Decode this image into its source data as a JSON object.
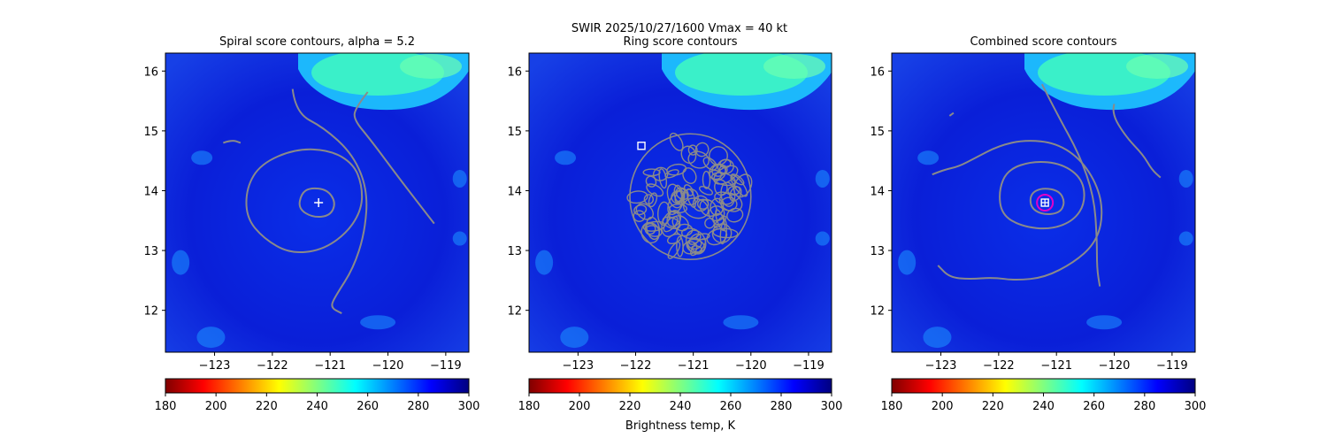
{
  "figure": {
    "suptitle_line1": "SWIR  2025/10/27/1600    Vmax = 40 kt",
    "colorbar_label": "Brightness temp, K"
  },
  "colors": {
    "background": "#0a1fd8",
    "contour": "#8a8a8a",
    "marker_white": "#ffffff",
    "marker_magenta": "#e000c8",
    "cloud_cyan": "#3cf2c6"
  },
  "colormap": {
    "name": "jet_r",
    "stops": [
      "#800000",
      "#ff0000",
      "#ff8000",
      "#ffff00",
      "#80ff80",
      "#00ffff",
      "#0080ff",
      "#0000ff",
      "#000080"
    ]
  },
  "chart_data": [
    {
      "type": "heatmap",
      "title": "Spiral score contours, alpha =  5.2",
      "xlabel": "",
      "ylabel": "",
      "xlim": [
        -123.85,
        -118.6
      ],
      "ylim": [
        11.3,
        16.3
      ],
      "xticks": [
        -123,
        -122,
        -121,
        -120,
        -119
      ],
      "xtick_labels": [
        "−123",
        "−122",
        "−121",
        "−120",
        "−119"
      ],
      "yticks": [
        12,
        13,
        14,
        15,
        16
      ],
      "ytick_labels": [
        "12",
        "13",
        "14",
        "15",
        "16"
      ],
      "colorbar": {
        "range": [
          180,
          300
        ],
        "ticks": [
          180,
          200,
          220,
          240,
          260,
          280,
          300
        ],
        "tick_labels": [
          "180",
          "200",
          "220",
          "240",
          "260",
          "280",
          "300"
        ]
      },
      "center_marker": {
        "symbol": "plus",
        "lon": -121.2,
        "lat": 13.8
      },
      "contours": [
        {
          "kind": "closed",
          "points": [
            [
              -121.35,
              14.05
            ],
            [
              -121.05,
              14.02
            ],
            [
              -120.9,
              13.8
            ],
            [
              -121.0,
              13.58
            ],
            [
              -121.3,
              13.55
            ],
            [
              -121.55,
              13.7
            ],
            [
              -121.5,
              13.95
            ]
          ]
        },
        {
          "kind": "closed",
          "points": [
            [
              -121.6,
              14.7
            ],
            [
              -121.0,
              14.68
            ],
            [
              -120.6,
              14.45
            ],
            [
              -120.45,
              14.1
            ],
            [
              -120.45,
              13.7
            ],
            [
              -120.7,
              13.3
            ],
            [
              -121.15,
              13.0
            ],
            [
              -121.7,
              12.95
            ],
            [
              -122.15,
              13.2
            ],
            [
              -122.45,
              13.55
            ],
            [
              -122.45,
              14.05
            ],
            [
              -122.2,
              14.45
            ]
          ]
        },
        {
          "kind": "open",
          "points": [
            [
              -121.65,
              15.7
            ],
            [
              -121.6,
              15.3
            ],
            [
              -121.1,
              15.05
            ],
            [
              -120.6,
              14.6
            ],
            [
              -120.35,
              14.0
            ],
            [
              -120.4,
              13.3
            ],
            [
              -120.6,
              12.7
            ],
            [
              -120.9,
              12.25
            ],
            [
              -121.0,
              12.05
            ],
            [
              -120.8,
              11.95
            ]
          ]
        },
        {
          "kind": "open",
          "points": [
            [
              -120.35,
              15.65
            ],
            [
              -120.55,
              15.4
            ],
            [
              -120.6,
              15.2
            ],
            [
              -120.3,
              14.85
            ],
            [
              -119.8,
              14.2
            ],
            [
              -119.4,
              13.7
            ],
            [
              -119.2,
              13.45
            ]
          ]
        },
        {
          "kind": "open",
          "points": [
            [
              -122.85,
              14.8
            ],
            [
              -122.7,
              14.85
            ],
            [
              -122.55,
              14.8
            ]
          ]
        }
      ]
    },
    {
      "type": "heatmap",
      "title": "Ring score contours",
      "xlabel": "Brightness temp, K",
      "ylabel": "",
      "xlim": [
        -123.85,
        -118.6
      ],
      "ylim": [
        11.3,
        16.3
      ],
      "xticks": [
        -123,
        -122,
        -121,
        -120,
        -119
      ],
      "xtick_labels": [
        "−123",
        "−122",
        "−121",
        "−120",
        "−119"
      ],
      "yticks": [
        12,
        13,
        14,
        15,
        16
      ],
      "ytick_labels": [
        "12",
        "13",
        "14",
        "15",
        "16"
      ],
      "colorbar": {
        "range": [
          180,
          300
        ],
        "ticks": [
          180,
          200,
          220,
          240,
          260,
          280,
          300
        ],
        "tick_labels": [
          "180",
          "200",
          "220",
          "240",
          "260",
          "280",
          "300"
        ]
      },
      "center_marker": {
        "symbol": "square",
        "lon": -121.9,
        "lat": 14.75
      },
      "ring_region": {
        "center_lon": -121.05,
        "center_lat": 13.9,
        "radius_deg": 1.05
      },
      "contours": []
    },
    {
      "type": "heatmap",
      "title": "Combined score contours",
      "xlabel": "",
      "ylabel": "",
      "xlim": [
        -123.85,
        -118.6
      ],
      "ylim": [
        11.3,
        16.3
      ],
      "xticks": [
        -123,
        -122,
        -121,
        -120,
        -119
      ],
      "xtick_labels": [
        "−123",
        "−122",
        "−121",
        "−120",
        "−119"
      ],
      "yticks": [
        12,
        13,
        14,
        15,
        16
      ],
      "ytick_labels": [
        "12",
        "13",
        "14",
        "15",
        "16"
      ],
      "colorbar": {
        "range": [
          180,
          300
        ],
        "ticks": [
          180,
          200,
          220,
          240,
          260,
          280,
          300
        ],
        "tick_labels": [
          "180",
          "200",
          "220",
          "240",
          "260",
          "280",
          "300"
        ]
      },
      "center_marker": {
        "symbol": "square-plus-circle",
        "lon": -121.2,
        "lat": 13.8
      },
      "contours": [
        {
          "kind": "closed",
          "points": [
            [
              -121.25,
              14.05
            ],
            [
              -120.95,
              14.0
            ],
            [
              -120.85,
              13.8
            ],
            [
              -120.95,
              13.62
            ],
            [
              -121.25,
              13.6
            ],
            [
              -121.45,
              13.72
            ],
            [
              -121.45,
              13.95
            ]
          ]
        },
        {
          "kind": "closed",
          "points": [
            [
              -121.4,
              14.5
            ],
            [
              -120.9,
              14.45
            ],
            [
              -120.55,
              14.2
            ],
            [
              -120.5,
              13.8
            ],
            [
              -120.7,
              13.5
            ],
            [
              -121.1,
              13.35
            ],
            [
              -121.6,
              13.4
            ],
            [
              -121.95,
              13.6
            ],
            [
              -122.0,
              14.0
            ],
            [
              -121.85,
              14.35
            ]
          ]
        },
        {
          "kind": "open",
          "points": [
            [
              -123.15,
              14.27
            ],
            [
              -122.95,
              14.35
            ],
            [
              -122.7,
              14.4
            ],
            [
              -122.4,
              14.55
            ],
            [
              -122.0,
              14.75
            ],
            [
              -121.55,
              14.85
            ],
            [
              -121.0,
              14.8
            ],
            [
              -120.55,
              14.5
            ],
            [
              -120.25,
              14.0
            ],
            [
              -120.2,
              13.5
            ],
            [
              -120.35,
              13.1
            ],
            [
              -120.7,
              12.8
            ],
            [
              -121.2,
              12.55
            ],
            [
              -121.7,
              12.5
            ],
            [
              -122.1,
              12.55
            ],
            [
              -122.5,
              12.52
            ],
            [
              -122.85,
              12.55
            ],
            [
              -123.05,
              12.75
            ]
          ]
        },
        {
          "kind": "open",
          "points": [
            [
              -121.25,
              15.78
            ],
            [
              -121.0,
              15.3
            ],
            [
              -120.6,
              14.6
            ],
            [
              -120.35,
              13.9
            ],
            [
              -120.3,
              13.2
            ],
            [
              -120.3,
              12.7
            ],
            [
              -120.25,
              12.4
            ]
          ]
        },
        {
          "kind": "open",
          "points": [
            [
              -120.0,
              15.45
            ],
            [
              -120.05,
              15.3
            ],
            [
              -119.8,
              14.9
            ],
            [
              -119.5,
              14.6
            ],
            [
              -119.35,
              14.35
            ],
            [
              -119.2,
              14.22
            ]
          ]
        },
        {
          "kind": "open",
          "points": [
            [
              -122.85,
              15.25
            ],
            [
              -122.78,
              15.3
            ]
          ]
        }
      ]
    }
  ]
}
